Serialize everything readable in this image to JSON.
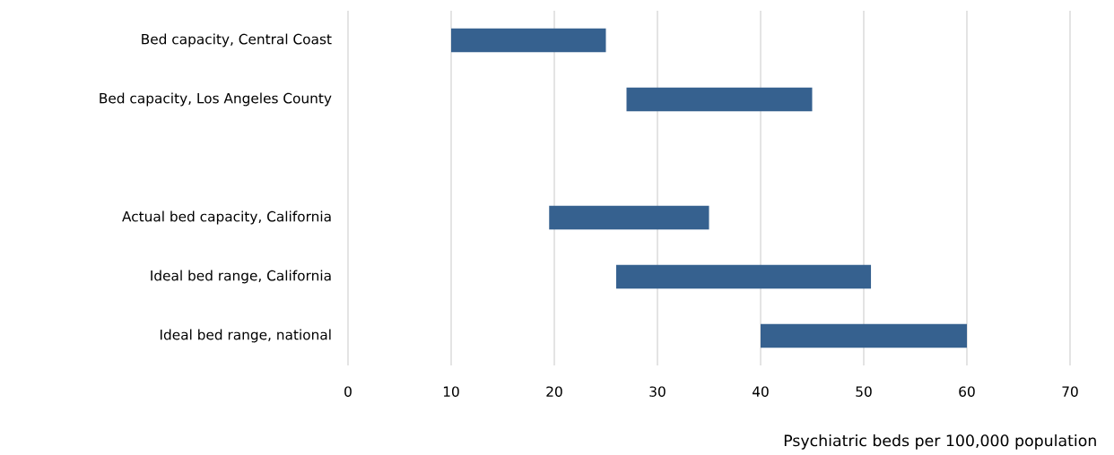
{
  "chart_data": {
    "type": "bar",
    "orientation": "horizontal",
    "xlabel": "Psychiatric beds per 100,000 population",
    "categories": [
      "Bed capacity, Central Coast",
      "Bed capacity, Los Angeles County",
      null,
      "Actual bed capacity, California",
      "Ideal bed range, California",
      "Ideal bed range, national"
    ],
    "base": [
      10,
      27,
      null,
      19.5,
      26,
      40
    ],
    "values": [
      15,
      18,
      null,
      15.5,
      24.7,
      20
    ],
    "color": "#36618f",
    "xlim": [
      0,
      70
    ],
    "xticks": [
      0,
      10,
      20,
      30,
      40,
      50,
      60,
      70
    ],
    "grid": "x"
  }
}
